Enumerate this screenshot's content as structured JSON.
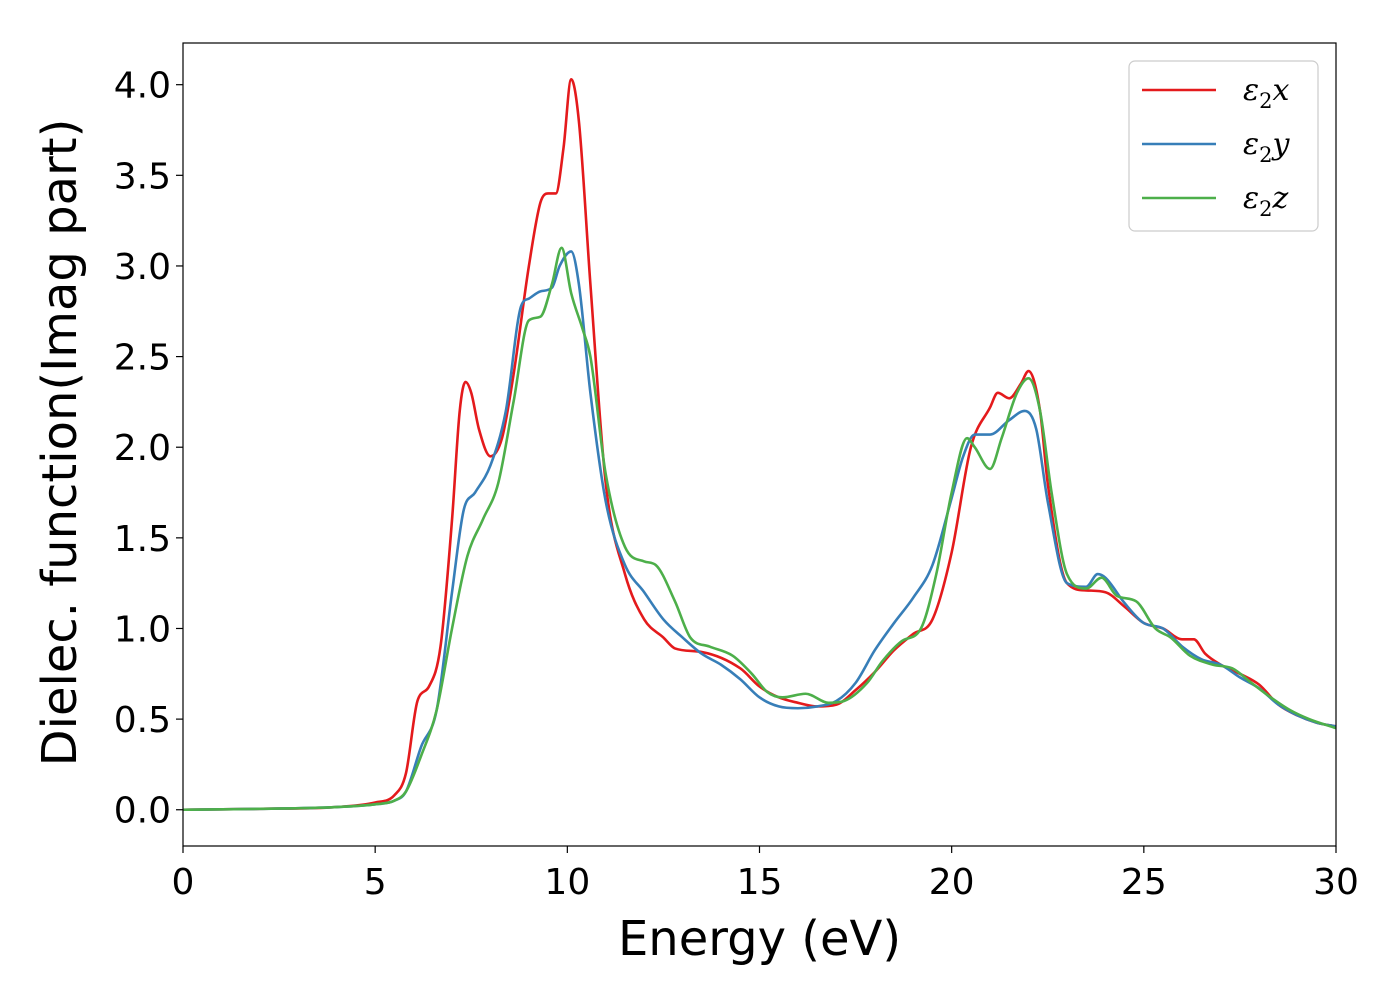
{
  "chart_data": {
    "type": "line",
    "xlabel": "Energy (eV)",
    "ylabel": "Dielec. function(Imag part)",
    "xlim": [
      0,
      30
    ],
    "ylim": [
      -0.2,
      4.23
    ],
    "xticks": [
      0,
      5,
      10,
      15,
      20,
      25,
      30
    ],
    "xtick_labels": [
      "0",
      "5",
      "10",
      "15",
      "20",
      "25",
      "30"
    ],
    "yticks": [
      0.0,
      0.5,
      1.0,
      1.5,
      2.0,
      2.5,
      3.0,
      3.5,
      4.0
    ],
    "ytick_labels": [
      "0.0",
      "0.5",
      "1.0",
      "1.5",
      "2.0",
      "2.5",
      "3.0",
      "3.5",
      "4.0"
    ],
    "grid": false,
    "legend_position": "top-right",
    "series": [
      {
        "name": "ε2x",
        "legend_base": "ε",
        "legend_sub": "2",
        "legend_suffix": "x",
        "color": "#e41a1c",
        "points": [
          [
            0,
            0
          ],
          [
            2,
            0.005
          ],
          [
            4,
            0.015
          ],
          [
            5,
            0.04
          ],
          [
            5.5,
            0.08
          ],
          [
            5.8,
            0.2
          ],
          [
            6.1,
            0.6
          ],
          [
            6.4,
            0.68
          ],
          [
            6.7,
            0.9
          ],
          [
            7.0,
            1.6
          ],
          [
            7.2,
            2.2
          ],
          [
            7.35,
            2.36
          ],
          [
            7.5,
            2.3
          ],
          [
            7.7,
            2.1
          ],
          [
            8.0,
            1.95
          ],
          [
            8.3,
            2.05
          ],
          [
            8.6,
            2.4
          ],
          [
            9.0,
            3.0
          ],
          [
            9.3,
            3.35
          ],
          [
            9.5,
            3.4
          ],
          [
            9.7,
            3.4
          ],
          [
            9.9,
            3.65
          ],
          [
            10.1,
            4.03
          ],
          [
            10.3,
            3.8
          ],
          [
            10.6,
            2.9
          ],
          [
            11.0,
            1.8
          ],
          [
            11.5,
            1.3
          ],
          [
            12.0,
            1.05
          ],
          [
            12.5,
            0.95
          ],
          [
            12.8,
            0.89
          ],
          [
            13.5,
            0.87
          ],
          [
            14.5,
            0.78
          ],
          [
            15,
            0.68
          ],
          [
            15.5,
            0.62
          ],
          [
            16,
            0.59
          ],
          [
            16.5,
            0.57
          ],
          [
            17,
            0.58
          ],
          [
            17.5,
            0.66
          ],
          [
            18,
            0.76
          ],
          [
            18.5,
            0.88
          ],
          [
            19,
            0.97
          ],
          [
            19.5,
            1.05
          ],
          [
            20,
            1.42
          ],
          [
            20.5,
            2.0
          ],
          [
            21,
            2.22
          ],
          [
            21.2,
            2.3
          ],
          [
            21.5,
            2.27
          ],
          [
            21.8,
            2.35
          ],
          [
            22,
            2.42
          ],
          [
            22.3,
            2.2
          ],
          [
            22.5,
            1.8
          ],
          [
            23,
            1.25
          ],
          [
            23.5,
            1.21
          ],
          [
            24,
            1.2
          ],
          [
            24.5,
            1.12
          ],
          [
            25,
            1.03
          ],
          [
            25.5,
            1.0
          ],
          [
            26,
            0.94
          ],
          [
            26.3,
            0.94
          ],
          [
            26.6,
            0.86
          ],
          [
            27,
            0.8
          ],
          [
            27.5,
            0.75
          ],
          [
            28,
            0.69
          ],
          [
            28.5,
            0.58
          ],
          [
            29,
            0.52
          ],
          [
            29.5,
            0.48
          ],
          [
            30,
            0.46
          ]
        ]
      },
      {
        "name": "ε2y",
        "legend_base": "ε",
        "legend_sub": "2",
        "legend_suffix": "y",
        "color": "#377eb8",
        "points": [
          [
            0,
            0
          ],
          [
            2,
            0.005
          ],
          [
            4,
            0.015
          ],
          [
            5,
            0.03
          ],
          [
            5.5,
            0.05
          ],
          [
            5.8,
            0.1
          ],
          [
            6.2,
            0.35
          ],
          [
            6.6,
            0.55
          ],
          [
            7.0,
            1.2
          ],
          [
            7.3,
            1.65
          ],
          [
            7.6,
            1.75
          ],
          [
            8.0,
            1.9
          ],
          [
            8.4,
            2.2
          ],
          [
            8.8,
            2.78
          ],
          [
            9.0,
            2.82
          ],
          [
            9.3,
            2.86
          ],
          [
            9.6,
            2.88
          ],
          [
            9.8,
            3.0
          ],
          [
            10.1,
            3.08
          ],
          [
            10.3,
            2.9
          ],
          [
            10.6,
            2.3
          ],
          [
            11.0,
            1.7
          ],
          [
            11.5,
            1.35
          ],
          [
            12.0,
            1.2
          ],
          [
            12.5,
            1.05
          ],
          [
            13.0,
            0.95
          ],
          [
            13.5,
            0.86
          ],
          [
            14,
            0.8
          ],
          [
            14.5,
            0.72
          ],
          [
            15,
            0.62
          ],
          [
            15.5,
            0.57
          ],
          [
            16,
            0.56
          ],
          [
            16.5,
            0.57
          ],
          [
            17,
            0.6
          ],
          [
            17.5,
            0.7
          ],
          [
            18,
            0.88
          ],
          [
            18.5,
            1.03
          ],
          [
            19,
            1.17
          ],
          [
            19.5,
            1.35
          ],
          [
            20,
            1.72
          ],
          [
            20.3,
            1.95
          ],
          [
            20.6,
            2.07
          ],
          [
            21,
            2.07
          ],
          [
            21.5,
            2.15
          ],
          [
            21.9,
            2.2
          ],
          [
            22.2,
            2.1
          ],
          [
            22.5,
            1.7
          ],
          [
            23,
            1.25
          ],
          [
            23.5,
            1.23
          ],
          [
            23.8,
            1.3
          ],
          [
            24,
            1.28
          ],
          [
            24.5,
            1.14
          ],
          [
            25,
            1.03
          ],
          [
            25.5,
            1.0
          ],
          [
            26,
            0.9
          ],
          [
            26.5,
            0.83
          ],
          [
            27,
            0.8
          ],
          [
            27.5,
            0.73
          ],
          [
            28,
            0.67
          ],
          [
            28.5,
            0.58
          ],
          [
            29,
            0.52
          ],
          [
            29.5,
            0.48
          ],
          [
            30,
            0.46
          ]
        ]
      },
      {
        "name": "ε2z",
        "legend_base": "ε",
        "legend_sub": "2",
        "legend_suffix": "z",
        "color": "#4daf4a",
        "points": [
          [
            0,
            0
          ],
          [
            2,
            0.005
          ],
          [
            4,
            0.015
          ],
          [
            5,
            0.03
          ],
          [
            5.5,
            0.05
          ],
          [
            5.8,
            0.1
          ],
          [
            6.2,
            0.3
          ],
          [
            6.6,
            0.55
          ],
          [
            7.0,
            1.0
          ],
          [
            7.4,
            1.4
          ],
          [
            7.8,
            1.6
          ],
          [
            8.2,
            1.8
          ],
          [
            8.6,
            2.25
          ],
          [
            9.0,
            2.7
          ],
          [
            9.3,
            2.72
          ],
          [
            9.6,
            2.9
          ],
          [
            9.85,
            3.1
          ],
          [
            10.1,
            2.85
          ],
          [
            10.4,
            2.65
          ],
          [
            10.6,
            2.5
          ],
          [
            11.0,
            1.85
          ],
          [
            11.5,
            1.45
          ],
          [
            12.0,
            1.37
          ],
          [
            12.3,
            1.35
          ],
          [
            12.8,
            1.15
          ],
          [
            13.2,
            0.95
          ],
          [
            13.7,
            0.9
          ],
          [
            14.3,
            0.85
          ],
          [
            14.8,
            0.75
          ],
          [
            15.2,
            0.65
          ],
          [
            15.6,
            0.62
          ],
          [
            16.2,
            0.64
          ],
          [
            16.8,
            0.59
          ],
          [
            17.2,
            0.6
          ],
          [
            17.8,
            0.7
          ],
          [
            18.2,
            0.82
          ],
          [
            18.7,
            0.93
          ],
          [
            19.2,
            1.0
          ],
          [
            19.6,
            1.3
          ],
          [
            20.0,
            1.75
          ],
          [
            20.4,
            2.05
          ],
          [
            20.6,
            2.0
          ],
          [
            21.0,
            1.88
          ],
          [
            21.3,
            2.05
          ],
          [
            21.7,
            2.3
          ],
          [
            22,
            2.38
          ],
          [
            22.3,
            2.2
          ],
          [
            22.6,
            1.75
          ],
          [
            23,
            1.3
          ],
          [
            23.5,
            1.22
          ],
          [
            23.9,
            1.28
          ],
          [
            24.3,
            1.18
          ],
          [
            24.8,
            1.15
          ],
          [
            25.3,
            1.0
          ],
          [
            25.7,
            0.95
          ],
          [
            26.2,
            0.85
          ],
          [
            26.8,
            0.8
          ],
          [
            27.3,
            0.78
          ],
          [
            27.8,
            0.7
          ],
          [
            28.3,
            0.62
          ],
          [
            28.8,
            0.55
          ],
          [
            29.3,
            0.5
          ],
          [
            30,
            0.45
          ]
        ]
      }
    ]
  }
}
